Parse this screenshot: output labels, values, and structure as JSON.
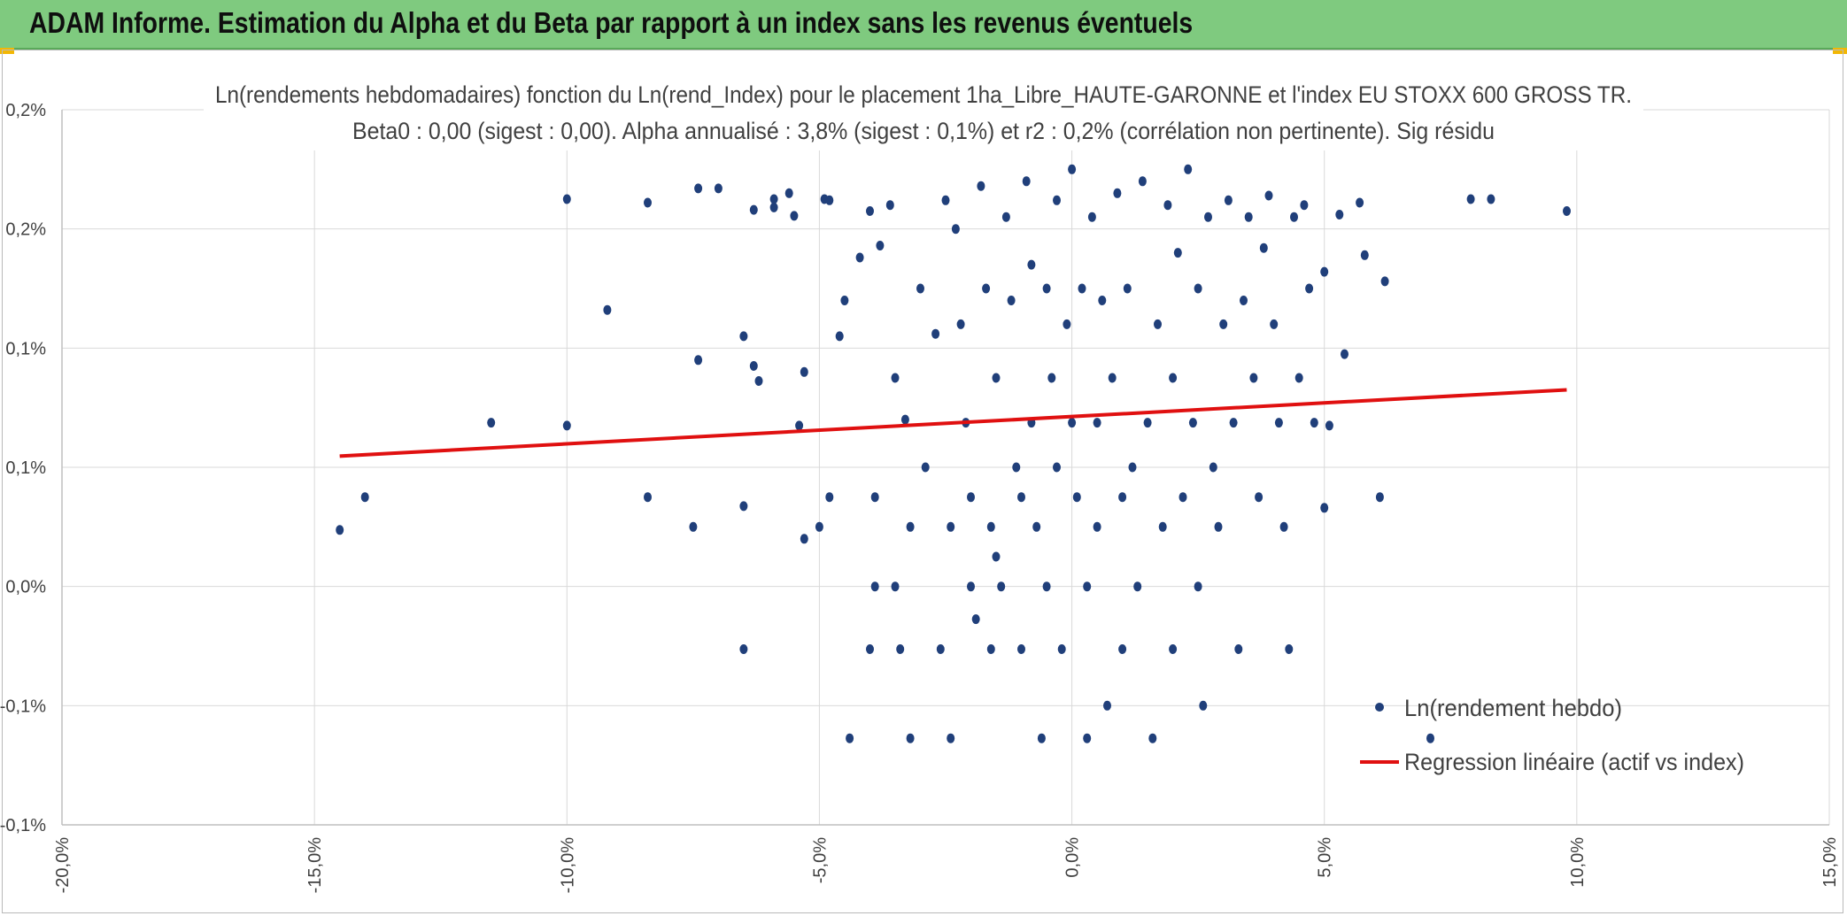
{
  "banner": {
    "title": "ADAM Informe. Estimation du Alpha et du Beta par rapport à un index sans les revenus éventuels",
    "color": "#7fca7f"
  },
  "chart_data": {
    "type": "scatter",
    "title": "Ln(rendements hebdomadaires) fonction du Ln(rend_Index) pour le placement 1ha_Libre_HAUTE-GARONNE et l'index EU STOXX 600 GROSS TR.",
    "subtitle": "Beta0 : 0,00 (sigest : 0,00). Alpha annualisé : 3,8% (sigest : 0,1%) et r2 : 0,2% (corrélation non pertinente). Sig résidu",
    "xlabel": "",
    "ylabel": "",
    "xlim": [
      -20,
      15
    ],
    "ylim": [
      -0.1,
      0.2
    ],
    "x_ticks": [
      "-20,0%",
      "-15,0%",
      "-10,0%",
      "-5,0%",
      "0,0%",
      "5,0%",
      "10,0%",
      "15,0%"
    ],
    "y_ticks": [
      "0,2%",
      "0,2%",
      "0,1%",
      "0,1%",
      "0,0%",
      "-0,1%",
      "-0,1%"
    ],
    "grid": true,
    "legend_position": "bottom-right",
    "series": [
      {
        "name": "Ln(rendement hebdo)",
        "type": "scatter",
        "color": "#203f7a",
        "points": [
          [
            -14.5,
            0.0237
          ],
          [
            -14.0,
            0.0375
          ],
          [
            -11.5,
            0.0687
          ],
          [
            -10.0,
            0.1625
          ],
          [
            -10.0,
            0.0675
          ],
          [
            -9.2,
            0.116
          ],
          [
            -8.4,
            0.0375
          ],
          [
            -8.4,
            0.161
          ],
          [
            -7.5,
            0.025
          ],
          [
            -7.4,
            0.095
          ],
          [
            -7.4,
            0.167
          ],
          [
            -7.0,
            0.167
          ],
          [
            -6.5,
            0.105
          ],
          [
            -6.3,
            0.158
          ],
          [
            -6.5,
            0.0337
          ],
          [
            -6.5,
            -0.0263
          ],
          [
            -6.3,
            0.0925
          ],
          [
            -6.2,
            0.0862
          ],
          [
            -5.9,
            0.1625
          ],
          [
            -5.9,
            0.159
          ],
          [
            -5.6,
            0.165
          ],
          [
            -5.5,
            0.1555
          ],
          [
            -5.4,
            0.0675
          ],
          [
            -5.3,
            0.09
          ],
          [
            -5.3,
            0.02
          ],
          [
            -5.0,
            0.025
          ],
          [
            -4.9,
            0.1625
          ],
          [
            -4.8,
            0.0375
          ],
          [
            -4.8,
            0.162
          ],
          [
            -4.6,
            0.105
          ],
          [
            -4.5,
            0.12
          ],
          [
            -4.4,
            -0.0637
          ],
          [
            -4.2,
            0.138
          ],
          [
            -4.0,
            0.1575
          ],
          [
            -4.0,
            -0.0263
          ],
          [
            -3.9,
            0.0375
          ],
          [
            -3.9,
            0.0
          ],
          [
            -3.8,
            0.143
          ],
          [
            -3.6,
            0.16
          ],
          [
            -3.5,
            0.0875
          ],
          [
            -3.5,
            0.0
          ],
          [
            -3.4,
            -0.0263
          ],
          [
            -3.3,
            0.07
          ],
          [
            -3.2,
            0.025
          ],
          [
            -3.2,
            -0.0637
          ],
          [
            -3.0,
            0.125
          ],
          [
            -2.9,
            0.05
          ],
          [
            -2.7,
            0.106
          ],
          [
            -2.6,
            -0.0263
          ],
          [
            -2.5,
            0.162
          ],
          [
            -2.4,
            0.025
          ],
          [
            -2.4,
            -0.0637
          ],
          [
            -2.3,
            0.15
          ],
          [
            -2.2,
            0.11
          ],
          [
            -2.1,
            0.0687
          ],
          [
            -2.0,
            0.0375
          ],
          [
            -2.0,
            0.0
          ],
          [
            -1.9,
            -0.0137
          ],
          [
            -1.8,
            0.168
          ],
          [
            -1.7,
            0.125
          ],
          [
            -1.6,
            0.025
          ],
          [
            -1.6,
            -0.0263
          ],
          [
            -1.5,
            0.0875
          ],
          [
            -1.5,
            0.0125
          ],
          [
            -1.4,
            0.0
          ],
          [
            -1.3,
            0.155
          ],
          [
            -1.2,
            0.12
          ],
          [
            -1.1,
            0.05
          ],
          [
            -1.0,
            0.0375
          ],
          [
            -1.0,
            -0.0263
          ],
          [
            -0.9,
            0.17
          ],
          [
            -0.8,
            0.135
          ],
          [
            -0.8,
            0.0687
          ],
          [
            -0.7,
            0.025
          ],
          [
            -0.6,
            -0.0637
          ],
          [
            -0.5,
            0.125
          ],
          [
            -0.5,
            0.0
          ],
          [
            -0.4,
            0.0875
          ],
          [
            -0.3,
            0.162
          ],
          [
            -0.3,
            0.05
          ],
          [
            -0.2,
            -0.0263
          ],
          [
            -0.1,
            0.11
          ],
          [
            0.0,
            0.0687
          ],
          [
            0.0,
            0.175
          ],
          [
            0.1,
            0.0375
          ],
          [
            0.2,
            0.125
          ],
          [
            0.3,
            0.0
          ],
          [
            0.3,
            -0.0637
          ],
          [
            0.4,
            0.155
          ],
          [
            0.5,
            0.0687
          ],
          [
            0.5,
            0.025
          ],
          [
            0.6,
            0.12
          ],
          [
            0.7,
            -0.05
          ],
          [
            0.8,
            0.0875
          ],
          [
            0.9,
            0.165
          ],
          [
            1.0,
            0.0375
          ],
          [
            1.0,
            -0.0263
          ],
          [
            1.1,
            0.125
          ],
          [
            1.2,
            0.05
          ],
          [
            1.3,
            0.0
          ],
          [
            1.4,
            0.17
          ],
          [
            1.5,
            0.0687
          ],
          [
            1.6,
            -0.0637
          ],
          [
            1.7,
            0.11
          ],
          [
            1.8,
            0.025
          ],
          [
            1.9,
            0.16
          ],
          [
            2.0,
            0.0875
          ],
          [
            2.0,
            -0.0263
          ],
          [
            2.1,
            0.14
          ],
          [
            2.2,
            0.0375
          ],
          [
            2.3,
            0.175
          ],
          [
            2.4,
            0.0687
          ],
          [
            2.5,
            0.0
          ],
          [
            2.5,
            0.125
          ],
          [
            2.6,
            -0.05
          ],
          [
            2.7,
            0.155
          ],
          [
            2.8,
            0.05
          ],
          [
            2.9,
            0.025
          ],
          [
            3.0,
            0.11
          ],
          [
            3.1,
            0.162
          ],
          [
            3.2,
            0.0687
          ],
          [
            3.3,
            -0.0263
          ],
          [
            3.4,
            0.12
          ],
          [
            3.5,
            0.155
          ],
          [
            3.6,
            0.0875
          ],
          [
            3.7,
            0.0375
          ],
          [
            3.8,
            0.142
          ],
          [
            3.9,
            0.164
          ],
          [
            4.0,
            0.11
          ],
          [
            4.1,
            0.0687
          ],
          [
            4.2,
            0.025
          ],
          [
            4.3,
            -0.0263
          ],
          [
            4.4,
            0.155
          ],
          [
            4.5,
            0.0875
          ],
          [
            4.6,
            0.16
          ],
          [
            4.7,
            0.125
          ],
          [
            4.8,
            0.0687
          ],
          [
            5.0,
            0.132
          ],
          [
            5.0,
            0.033
          ],
          [
            5.1,
            0.0675
          ],
          [
            5.3,
            0.156
          ],
          [
            5.4,
            0.0975
          ],
          [
            5.7,
            0.161
          ],
          [
            5.8,
            0.139
          ],
          [
            6.1,
            0.0375
          ],
          [
            6.2,
            0.128
          ],
          [
            7.1,
            -0.0637
          ],
          [
            7.9,
            0.1625
          ],
          [
            8.3,
            0.1625
          ],
          [
            9.8,
            0.1575
          ]
        ]
      },
      {
        "name": "Regression linéaire (actif vs index)",
        "type": "line",
        "color": "#e01010",
        "points": [
          [
            -14.5,
            0.0547
          ],
          [
            9.8,
            0.0825
          ]
        ]
      }
    ]
  }
}
